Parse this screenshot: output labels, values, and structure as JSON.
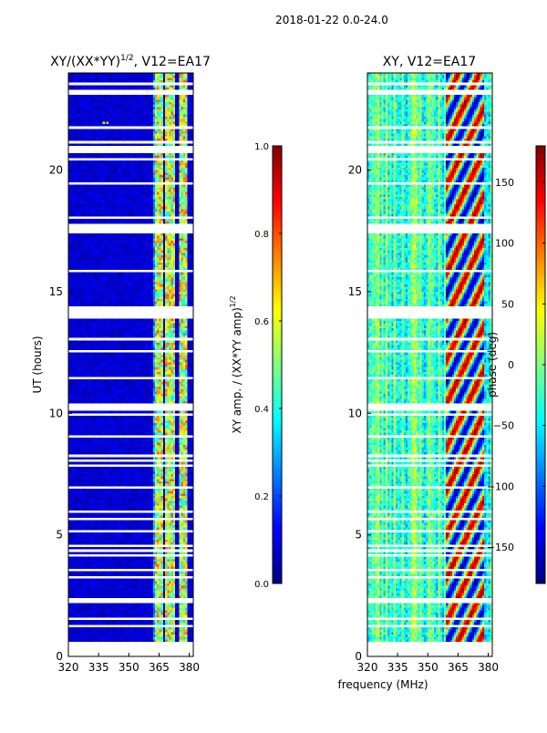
{
  "figure": {
    "suptitle": "2018-01-22 0.0-24.0",
    "shared_xlabel": "frequency (MHz)"
  },
  "chart_data": [
    {
      "type": "heatmap",
      "title": "XY/(XX*YY)",
      "title_exponent": "1/2",
      "title_suffix": ", V12=EA17",
      "xlabel": "",
      "ylabel": "UT (hours)",
      "xlim": [
        320,
        382
      ],
      "ylim": [
        0,
        24
      ],
      "xticks": [
        320,
        335,
        350,
        365,
        380
      ],
      "yticks": [
        0,
        5,
        10,
        15,
        20
      ],
      "colormap": "jet",
      "colorbar": {
        "label": "XY amp. / (XX*YY amp)",
        "label_exponent": "1/2",
        "range": [
          0.0,
          1.0
        ],
        "ticks": [
          0.0,
          0.2,
          0.4,
          0.6,
          0.8,
          1.0
        ],
        "tick_labels": [
          "0.0",
          "0.2",
          "0.4",
          "0.6",
          "0.8",
          "1.0"
        ]
      },
      "data_start_ut": 0.6,
      "bright_bands_mhz": [
        [
          363,
          367
        ],
        [
          368,
          373
        ],
        [
          375,
          379
        ]
      ],
      "hot_spot": {
        "freq_mhz": 338,
        "ut": 22.0
      }
    },
    {
      "type": "heatmap",
      "title": "XY, V12=EA17",
      "xlabel": "frequency (MHz)",
      "ylabel": "",
      "xlim": [
        320,
        382
      ],
      "ylim": [
        0,
        24
      ],
      "xticks": [
        320,
        335,
        350,
        365,
        380
      ],
      "yticks": [
        0,
        5,
        10,
        15,
        20
      ],
      "colormap": "jet",
      "colorbar": {
        "label": "phase (deg)",
        "range": [
          -180,
          180
        ],
        "ticks": [
          -150,
          -100,
          -50,
          0,
          50,
          100,
          150
        ],
        "tick_labels": [
          "−150",
          "−100",
          "−50",
          "0",
          "50",
          "100",
          "150"
        ]
      },
      "data_start_ut": 0.6,
      "wrapping_band_mhz": [
        359,
        378
      ]
    }
  ],
  "colors": {
    "jet": [
      "#00007f",
      "#0000ff",
      "#007fff",
      "#00ffff",
      "#7fff7f",
      "#ffff00",
      "#ff7f00",
      "#ff0000",
      "#7f0000"
    ],
    "axis": "#000000",
    "background": "#ffffff"
  }
}
